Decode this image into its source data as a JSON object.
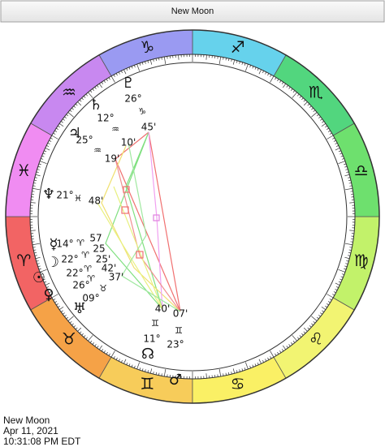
{
  "header": {
    "title": "New Moon"
  },
  "signs": [
    {
      "glyph": "♈",
      "color": "#f26464"
    },
    {
      "glyph": "♉",
      "color": "#f5a247"
    },
    {
      "glyph": "♊",
      "color": "#f7cc5a"
    },
    {
      "glyph": "♋",
      "color": "#faf065"
    },
    {
      "glyph": "♌",
      "color": "#f2f472"
    },
    {
      "glyph": "♍",
      "color": "#c2f26a"
    },
    {
      "glyph": "♎",
      "color": "#6ee06e"
    },
    {
      "glyph": "♏",
      "color": "#52d67e"
    },
    {
      "glyph": "♐",
      "color": "#66d2ec"
    },
    {
      "glyph": "♑",
      "color": "#9a9af2"
    },
    {
      "glyph": "♒",
      "color": "#c888f0"
    },
    {
      "glyph": "♓",
      "color": "#f08cf2"
    }
  ],
  "planets": [
    {
      "glyph": "♇",
      "degree": "26°",
      "sign": "♑",
      "minutes": "45'"
    },
    {
      "glyph": "♄",
      "degree": "12°",
      "sign": "♒",
      "minutes": "10'"
    },
    {
      "glyph": "♃",
      "degree": "25°",
      "sign": "♒",
      "minutes": "19'"
    },
    {
      "glyph": "♆",
      "degree": "21°",
      "sign": "♓",
      "minutes": "48'"
    },
    {
      "glyph": "☿",
      "degree": "14°",
      "sign": "♈",
      "minutes": "57"
    },
    {
      "glyph": "☽",
      "degree": "22°",
      "sign": "♈",
      "minutes": "25"
    },
    {
      "glyph": "☉",
      "degree": "22°",
      "sign": "♈",
      "minutes": "25'"
    },
    {
      "glyph": "♀",
      "degree": "26°",
      "sign": "♈",
      "minutes": "42'"
    },
    {
      "glyph": "♅",
      "degree": "09°",
      "sign": "♉",
      "minutes": "37'"
    },
    {
      "glyph": "♂",
      "degree": "23°",
      "sign": "♊",
      "minutes": "07'"
    },
    {
      "glyph": "☊",
      "degree": "11°",
      "sign": "♊",
      "minutes": "40'"
    }
  ],
  "footer": {
    "lines": [
      "New Moon",
      "Apr 11, 2021",
      "10:31:08 PM EDT"
    ]
  }
}
